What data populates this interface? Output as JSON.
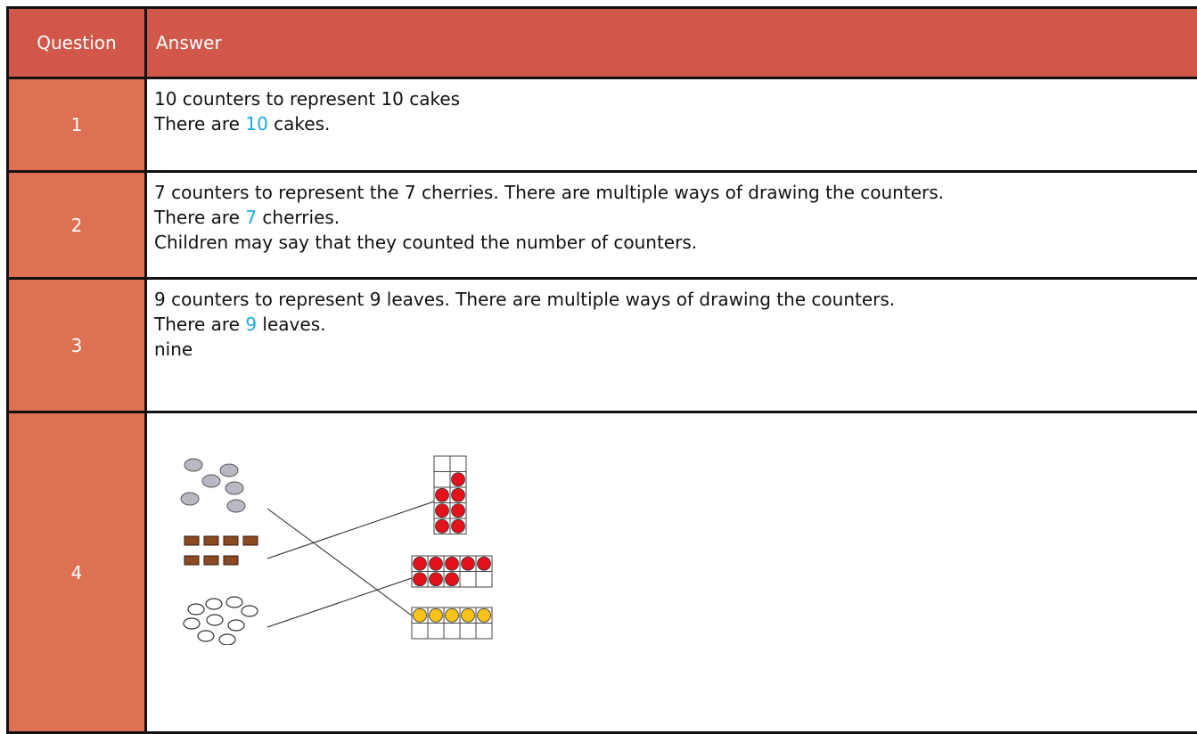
{
  "table": {
    "header": [
      "Question",
      "Answer"
    ],
    "rows": [
      {
        "question": 1,
        "answer": [
          {
            "text": "10 counters to represent 10 cakes"
          },
          {
            "before": "There are ",
            "number": 10,
            "after": " cakes."
          }
        ]
      },
      {
        "question": 2,
        "answer": [
          {
            "text": "7 counters to represent the 7 cherries. There are multiple ways of drawing the counters."
          },
          {
            "before": "There are ",
            "number": 7,
            "after": " cherries."
          },
          {
            "text": "Children may say that they counted the number of counters."
          }
        ]
      },
      {
        "question": 3,
        "answer": [
          {
            "text": "9 counters to represent 9 leaves. There are multiple ways of drawing the counters."
          },
          {
            "before": "There are ",
            "number": 9,
            "after": " leaves."
          },
          {
            "text": "nine"
          }
        ]
      },
      {
        "question": 4,
        "answer": []
      }
    ]
  }
}
